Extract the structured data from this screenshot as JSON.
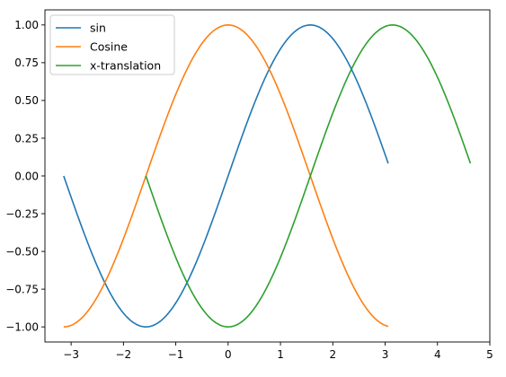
{
  "chart_data": {
    "type": "line",
    "title": "",
    "xlabel": "",
    "ylabel": "",
    "xlim": [
      -3.5,
      5.0
    ],
    "ylim": [
      -1.1,
      1.1
    ],
    "xticks": [
      -3,
      -2,
      -1,
      0,
      1,
      2,
      3,
      4,
      5
    ],
    "xtick_labels": [
      "−3",
      "−2",
      "−1",
      "0",
      "1",
      "2",
      "3",
      "4",
      "5"
    ],
    "yticks": [
      1.0,
      0.75,
      0.5,
      0.25,
      0.0,
      -0.25,
      -0.5,
      -0.75,
      -1.0
    ],
    "ytick_labels": [
      "1.00",
      "0.75",
      "0.50",
      "0.25",
      "0.00",
      "−0.25",
      "−0.50",
      "−0.75",
      "−1.00"
    ],
    "grid": false,
    "legend_position": "top-left",
    "series": [
      {
        "name": "sin",
        "color": "#1f77b4",
        "function": "sin(x)",
        "x_start": -3.14159,
        "x_end": 3.1,
        "x_step": 0.05
      },
      {
        "name": "Cosine",
        "color": "#ff7f0e",
        "function": "cos(x)",
        "x_start": -3.14159,
        "x_end": 3.1,
        "x_step": 0.05
      },
      {
        "name": "x-translation",
        "color": "#2ca02c",
        "function": "sin(x - 1.5708)",
        "x_start": -1.5708,
        "x_end": 4.67,
        "x_step": 0.05
      }
    ]
  }
}
